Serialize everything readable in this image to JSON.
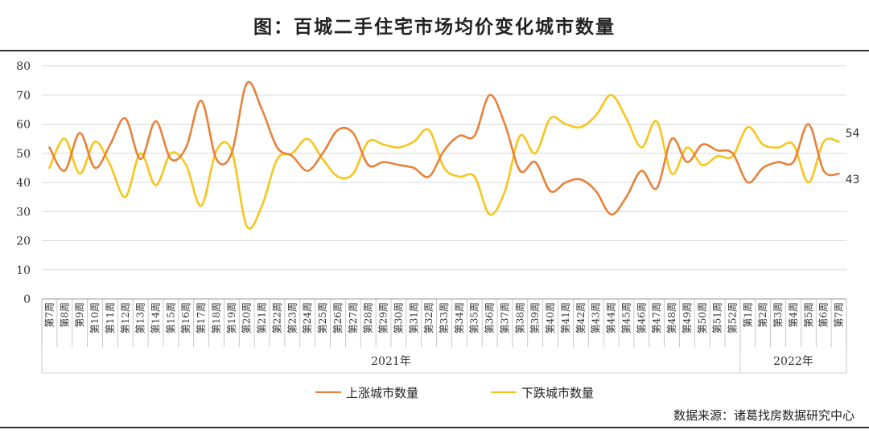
{
  "title": "图：百城二手住宅市场均价变化城市数量",
  "source": "数据来源：诸葛找房数据研究中心",
  "colors": {
    "rise": "#E8823A",
    "fall": "#F8C51C"
  },
  "chart_data": {
    "type": "line",
    "smooth": true,
    "ylim": [
      0,
      80
    ],
    "yticks": [
      0,
      10,
      20,
      30,
      40,
      50,
      60,
      70,
      80
    ],
    "grid": true,
    "legend_position": "bottom",
    "categories": [
      "第7周",
      "第8周",
      "第9周",
      "第10周",
      "第11周",
      "第12周",
      "第13周",
      "第14周",
      "第15周",
      "第16周",
      "第17周",
      "第18周",
      "第19周",
      "第20周",
      "第21周",
      "第22周",
      "第23周",
      "第24周",
      "第25周",
      "第26周",
      "第27周",
      "第28周",
      "第29周",
      "第30周",
      "第31周",
      "第32周",
      "第33周",
      "第34周",
      "第35周",
      "第36周",
      "第37周",
      "第38周",
      "第39周",
      "第40周",
      "第41周",
      "第42周",
      "第43周",
      "第44周",
      "第45周",
      "第46周",
      "第47周",
      "第48周",
      "第49周",
      "第50周",
      "第51周",
      "第52周",
      "第1周",
      "第2周",
      "第3周",
      "第4周",
      "第5周",
      "第6周",
      "第7周"
    ],
    "groups": [
      {
        "label": "2021年",
        "start": 0,
        "end": 45
      },
      {
        "label": "2022年",
        "start": 46,
        "end": 52
      }
    ],
    "series": [
      {
        "name": "上涨城市数量",
        "color": "#E8823A",
        "values": [
          52,
          44,
          57,
          45,
          53,
          62,
          48,
          61,
          48,
          52,
          68,
          48,
          50,
          74,
          65,
          52,
          49,
          44,
          50,
          58,
          57,
          46,
          47,
          46,
          45,
          42,
          51,
          56,
          56,
          70,
          60,
          44,
          47,
          37,
          40,
          41,
          37,
          29,
          35,
          44,
          38,
          55,
          47,
          53,
          51,
          50,
          40,
          45,
          47,
          47,
          60,
          44,
          43
        ]
      },
      {
        "name": "下跌城市数量",
        "color": "#F8C51C",
        "values": [
          45,
          55,
          43,
          54,
          46,
          35,
          50,
          39,
          50,
          46,
          32,
          51,
          51,
          25,
          32,
          48,
          50,
          55,
          48,
          42,
          43,
          54,
          53,
          52,
          54,
          58,
          45,
          42,
          42,
          29,
          37,
          56,
          50,
          62,
          60,
          59,
          63,
          70,
          62,
          52,
          61,
          43,
          52,
          46,
          49,
          49,
          59,
          53,
          52,
          53,
          40,
          54,
          54
        ]
      }
    ],
    "end_labels": {
      "rise": "43",
      "fall": "54"
    }
  }
}
